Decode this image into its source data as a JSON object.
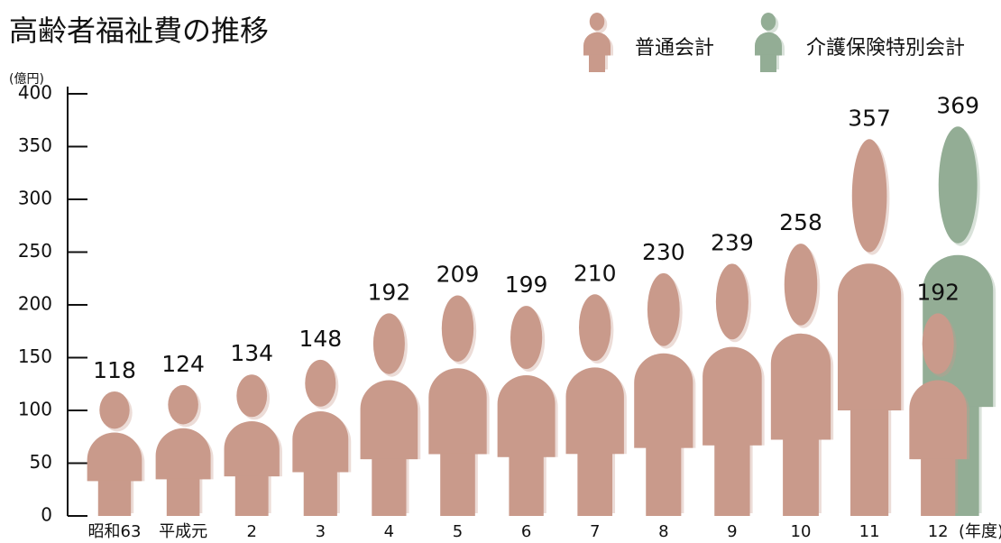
{
  "chart_data": {
    "type": "pictogram",
    "title": "高齢者福祉費の推移",
    "y_unit": "(億円)",
    "x_unit": "(年度)",
    "categories": [
      "昭和63",
      "平成元",
      "2",
      "3",
      "4",
      "5",
      "6",
      "7",
      "8",
      "9",
      "10",
      "11",
      "12"
    ],
    "series": [
      {
        "name": "普通会計",
        "color": "#c99a8b",
        "values": [
          118,
          124,
          134,
          148,
          192,
          209,
          199,
          210,
          230,
          239,
          258,
          357,
          192
        ]
      },
      {
        "name": "介護保険特別会計",
        "color": "#93ad95",
        "values": [
          null,
          null,
          null,
          null,
          null,
          null,
          null,
          null,
          null,
          null,
          null,
          null,
          369
        ]
      }
    ],
    "ylim": [
      0,
      400
    ],
    "yticks": [
      0,
      50,
      100,
      150,
      200,
      250,
      300,
      350,
      400
    ]
  }
}
